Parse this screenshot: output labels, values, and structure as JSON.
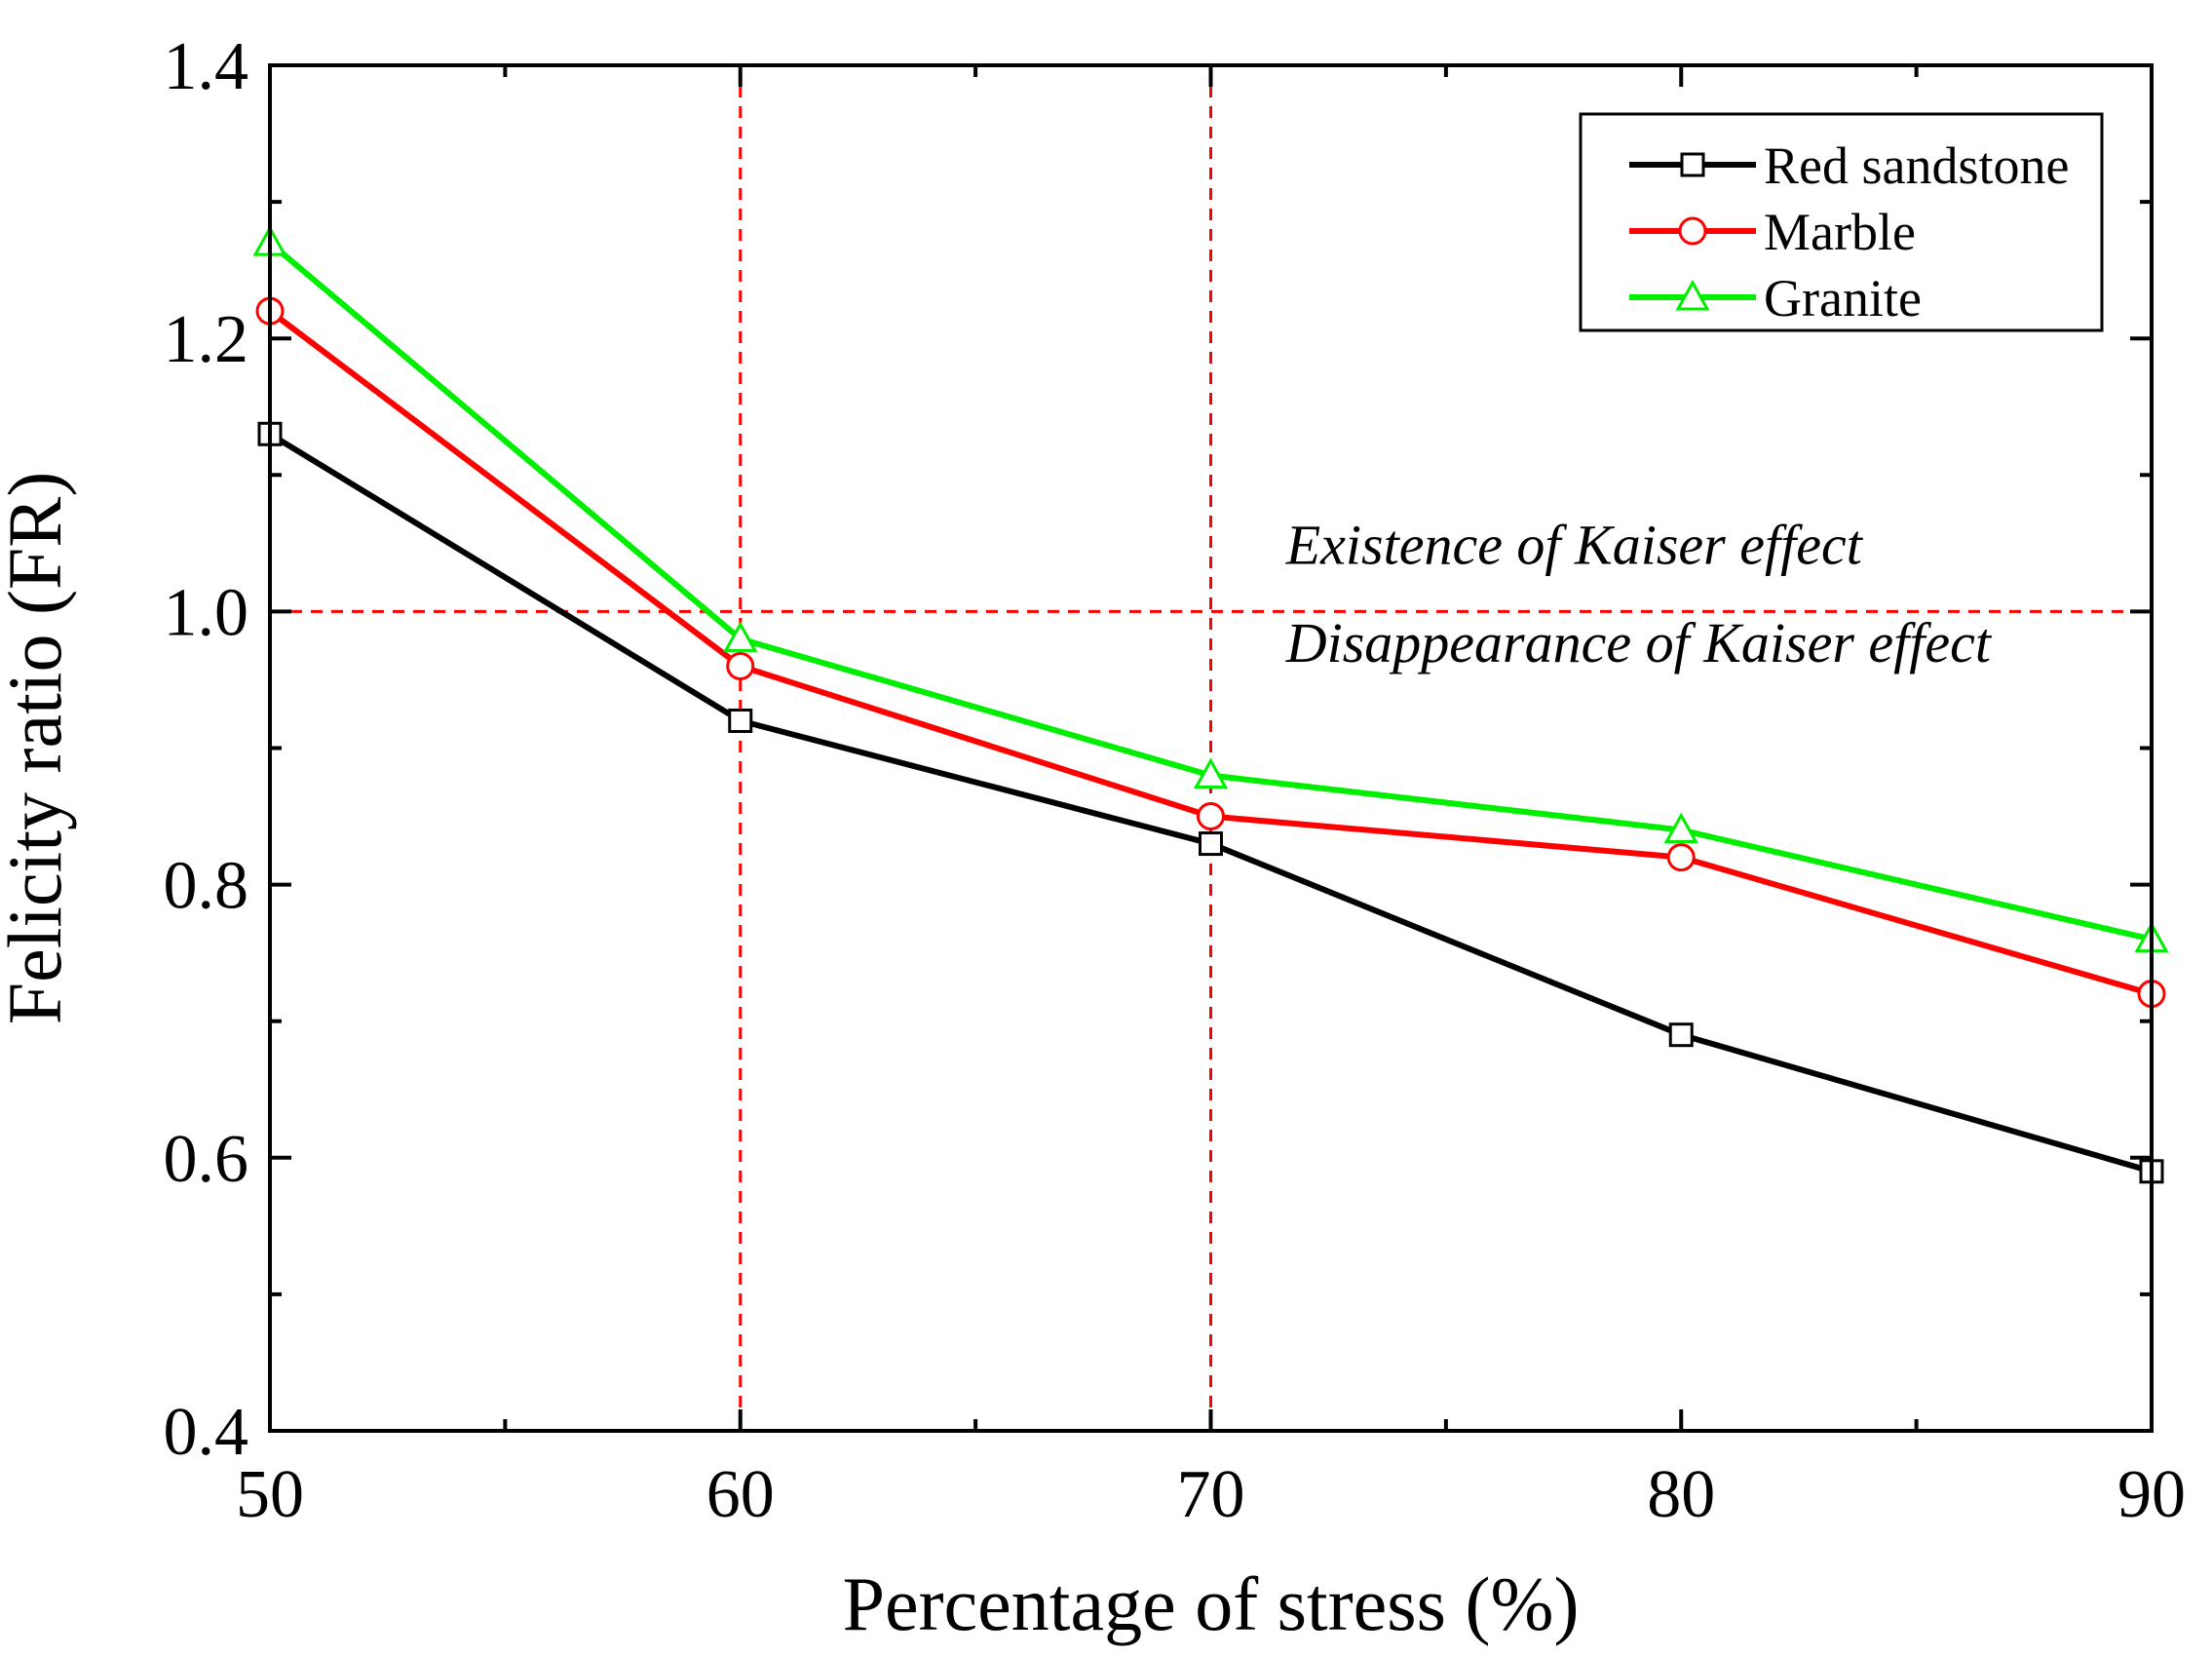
{
  "chart_data": {
    "type": "line",
    "title": "",
    "xlabel": "Percentage of stress (%)",
    "ylabel": "Felicity ratio (FR)",
    "x": [
      50,
      60,
      70,
      80,
      90
    ],
    "xlim": [
      50,
      90
    ],
    "ylim": [
      0.4,
      1.4
    ],
    "xticks": [
      "50",
      "60",
      "70",
      "80",
      "90"
    ],
    "yticks": [
      "0.4",
      "0.6",
      "0.8",
      "1.0",
      "1.2",
      "1.4"
    ],
    "grid": false,
    "legend_position": "top-right",
    "series": [
      {
        "name": "Red sandstone",
        "color": "#000000",
        "marker": "square",
        "values": [
          1.13,
          0.92,
          0.83,
          0.69,
          0.59
        ]
      },
      {
        "name": "Marble",
        "color": "#ff0000",
        "marker": "circle",
        "values": [
          1.22,
          0.96,
          0.85,
          0.82,
          0.72
        ]
      },
      {
        "name": "Granite",
        "color": "#00ee00",
        "marker": "triangle",
        "values": [
          1.27,
          0.98,
          0.88,
          0.84,
          0.76
        ]
      }
    ],
    "reference_lines": {
      "color": "#ff0000",
      "vertical_x": [
        60,
        70
      ],
      "horizontal_y": [
        1.0
      ]
    },
    "annotations": [
      {
        "text": "Existence of Kaiser effect",
        "x": 71.6,
        "y": 1.035
      },
      {
        "text": "Disappearance of Kaiser effect",
        "x": 71.6,
        "y": 0.963
      }
    ]
  }
}
